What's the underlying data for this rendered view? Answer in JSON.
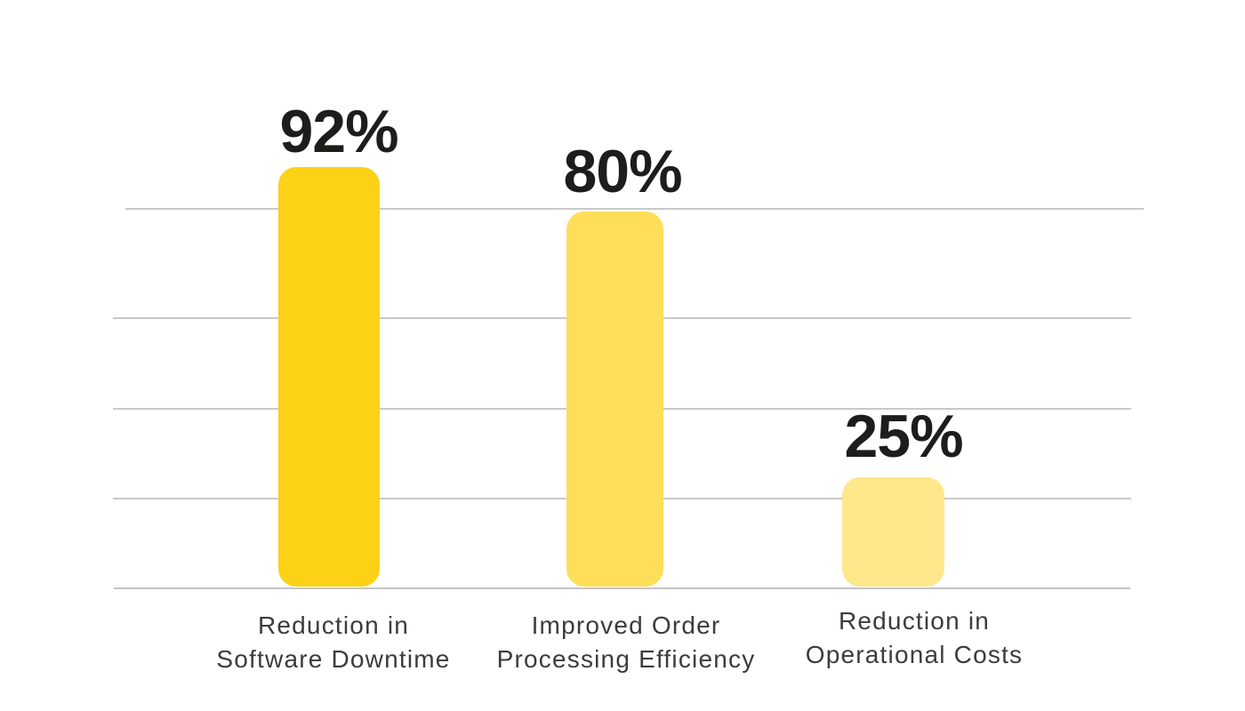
{
  "chart_data": {
    "type": "bar",
    "title": "",
    "xlabel": "",
    "ylabel": "",
    "unit": "%",
    "categories": [
      "Reduction in Software Downtime",
      "Improved Order Processing Efficiency",
      "Reduction in Operational Costs"
    ],
    "values": [
      92,
      80,
      25
    ],
    "value_labels": [
      "92%",
      "80%",
      "25%"
    ],
    "bars": [
      {
        "category": "Reduction in Software Downtime",
        "category_lines": [
          "Reduction in",
          "Software Downtime"
        ],
        "value": 92,
        "value_label": "92%",
        "color": "#FCD116"
      },
      {
        "category": "Improved Order Processing Efficiency",
        "category_lines": [
          "Improved Order",
          "Processing Efficiency"
        ],
        "value": 80,
        "value_label": "80%",
        "color": "#FFDE59"
      },
      {
        "category": "Reduction in Operational Costs",
        "category_lines": [
          "Reduction in",
          "Operational Costs"
        ],
        "value": 25,
        "value_label": "25%",
        "color": "#FFE78C"
      }
    ],
    "ylim": [
      0,
      100
    ],
    "grid": true,
    "gridline_count": 5,
    "gridline_color": "#C9C9C9",
    "legend_position": "none",
    "value_label_color": "#1D1D1B",
    "category_label_color": "#3C3C3C",
    "background_color": "#FFFFFF"
  }
}
